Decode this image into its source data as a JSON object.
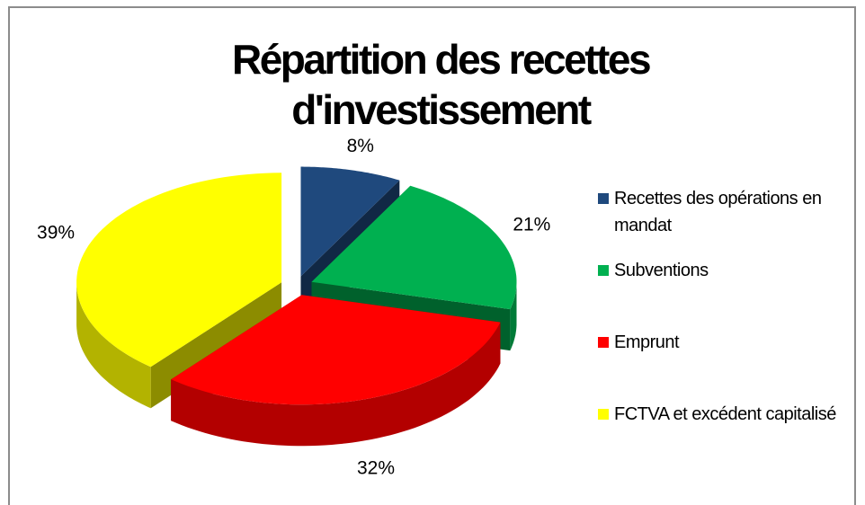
{
  "chart_data": {
    "type": "pie",
    "title": "Répartition des recettes d'investissement",
    "categories": [
      "Recettes des opérations en mandat",
      "Subventions",
      "Emprunt",
      "FCTVA et excédent capitalisé"
    ],
    "values": [
      8,
      21,
      32,
      39
    ],
    "value_labels": [
      "8%",
      "21%",
      "32%",
      "39%"
    ],
    "colors": [
      "#1f497d",
      "#00b050",
      "#ff0000",
      "#ffff00"
    ],
    "legend": "right"
  }
}
